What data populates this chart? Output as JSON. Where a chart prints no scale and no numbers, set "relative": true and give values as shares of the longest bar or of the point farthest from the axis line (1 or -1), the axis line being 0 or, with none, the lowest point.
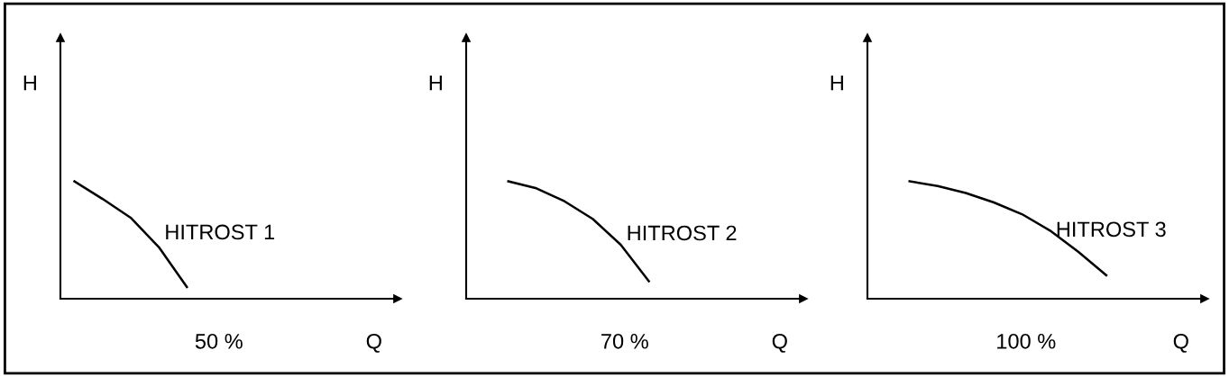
{
  "chart_data": [
    {
      "type": "line",
      "relative": true,
      "xlabel": "Q",
      "ylabel": "H",
      "categories": [
        null,
        null,
        null,
        null,
        null,
        null,
        null,
        null,
        null,
        null,
        null,
        null
      ],
      "series": [
        {
          "name": "HITROST 1",
          "color": "#000000",
          "values": [
            1,
            0.85,
            0.69,
            0.44,
            0.1,
            null,
            null,
            null,
            null,
            null,
            null,
            null
          ]
        }
      ],
      "annotations": [
        "50 %"
      ],
      "grid": false,
      "legend": false,
      "marker": "none",
      "line_style": "solid"
    },
    {
      "type": "line",
      "relative": true,
      "xlabel": "Q",
      "ylabel": "H",
      "categories": [
        null,
        null,
        null,
        null,
        null,
        null,
        null,
        null,
        null,
        null,
        null,
        null
      ],
      "series": [
        {
          "name": "HITROST 2",
          "color": "#000000",
          "values": [
            null,
            1,
            0.94,
            0.83,
            0.68,
            0.46,
            0.15,
            null,
            null,
            null,
            null,
            null
          ]
        }
      ],
      "annotations": [
        "70 %"
      ],
      "grid": false,
      "legend": false,
      "marker": "none",
      "line_style": "solid"
    },
    {
      "type": "line",
      "relative": true,
      "xlabel": "Q",
      "ylabel": "H",
      "categories": [
        null,
        null,
        null,
        null,
        null,
        null,
        null,
        null,
        null,
        null,
        null,
        null
      ],
      "series": [
        {
          "name": "HITROST 3",
          "color": "#000000",
          "values": [
            null,
            1,
            0.96,
            0.9,
            0.82,
            0.72,
            0.58,
            0.4,
            0.2,
            null,
            null,
            null
          ]
        }
      ],
      "annotations": [
        "100 %"
      ],
      "grid": false,
      "legend": false,
      "marker": "none",
      "line_style": "solid"
    }
  ]
}
